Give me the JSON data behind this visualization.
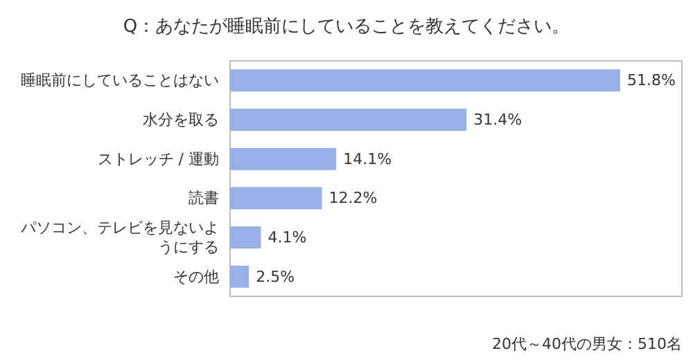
{
  "chart_data": {
    "type": "bar",
    "orientation": "horizontal",
    "title": "Q：あなたが睡眠前にしていることを教えてください。",
    "categories": [
      "睡眠前にしていることはない",
      "水分を取る",
      "ストレッチ / 運動",
      "読書",
      "パソコン、テレビを見ないようにする",
      "その他"
    ],
    "values": [
      51.8,
      31.4,
      14.1,
      12.2,
      4.1,
      2.5
    ],
    "value_labels": [
      "51.8%",
      "31.4%",
      "14.1%",
      "12.2%",
      "4.1%",
      "2.5%"
    ],
    "color": "#97b1e8",
    "xlim": [
      0,
      60
    ],
    "tick_labels": "y",
    "grid": false,
    "annotations": [
      "20代～40代の男女：510名"
    ]
  }
}
